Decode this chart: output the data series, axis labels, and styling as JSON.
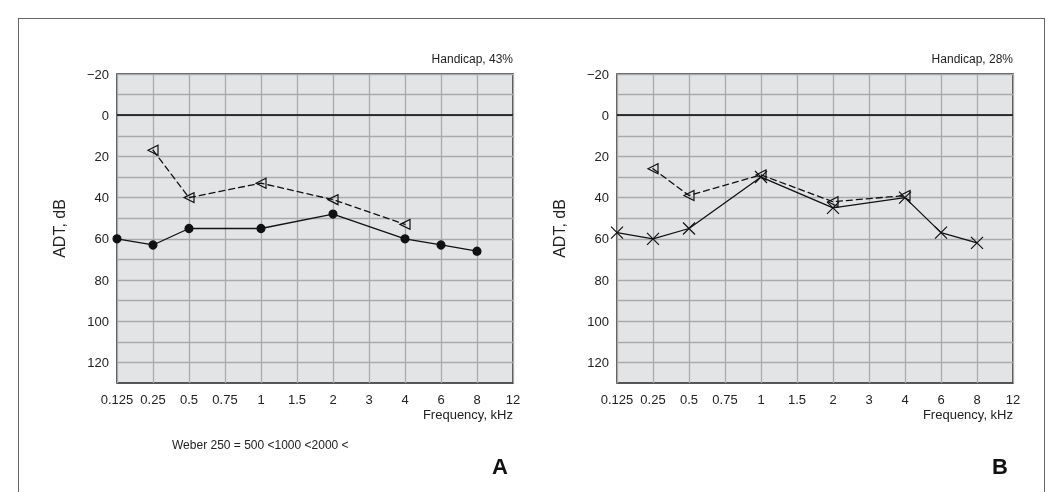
{
  "chart_data": [
    {
      "type": "line",
      "title": "A",
      "xlabel": "Frequency, kHz",
      "ylabel": "ADT, dB",
      "categories": [
        "0.125",
        "0.25",
        "0.5",
        "0.75",
        "1",
        "1.5",
        "2",
        "3",
        "4",
        "6",
        "8",
        "12"
      ],
      "series": [
        {
          "color": "#111111",
          "marker": "circle",
          "line_style": "solid",
          "values": [
            60,
            63,
            55,
            null,
            55,
            null,
            48,
            null,
            60,
            63,
            66,
            null
          ]
        },
        {
          "color": "#111111",
          "marker": "triangle",
          "line_style": "dashed",
          "values": [
            null,
            17,
            40,
            null,
            33,
            null,
            41,
            null,
            53,
            null,
            null,
            null
          ]
        }
      ],
      "ylim": [
        130,
        -20
      ],
      "yticks": [
        -20,
        {
          "value": -10,
          "label": null
        },
        0,
        {
          "value": 10,
          "label": null
        },
        20,
        {
          "value": 30,
          "label": null
        },
        40,
        {
          "value": 50,
          "label": null
        },
        60,
        {
          "value": 70,
          "label": null
        },
        80,
        {
          "value": 90,
          "label": null
        },
        100,
        {
          "value": 110,
          "label": null
        },
        120
      ],
      "grid": true,
      "ref_lines": [
        {
          "axis": "y",
          "value": 0,
          "color": "#000000"
        }
      ],
      "annotations": [
        "Handicap, 43%",
        "Weber 250 = 500 <1000 <2000 <"
      ]
    },
    {
      "type": "line",
      "title": "B",
      "xlabel": "Frequency, kHz",
      "ylabel": "ADT, dB",
      "categories": [
        "0.125",
        "0.25",
        "0.5",
        "0.75",
        "1",
        "1.5",
        "2",
        "3",
        "4",
        "6",
        "8",
        "12"
      ],
      "series": [
        {
          "color": "#111111",
          "marker": "cross",
          "line_style": "solid",
          "values": [
            57,
            60,
            55,
            null,
            30,
            null,
            45,
            null,
            40,
            57,
            62,
            null
          ]
        },
        {
          "color": "#111111",
          "marker": "triangle",
          "line_style": "dashed",
          "values": [
            null,
            26,
            39,
            null,
            29,
            null,
            42,
            null,
            39,
            null,
            null,
            null
          ]
        }
      ],
      "ylim": [
        130,
        -20
      ],
      "yticks": [
        -20,
        {
          "value": -10,
          "label": null
        },
        0,
        {
          "value": 10,
          "label": null
        },
        20,
        {
          "value": 30,
          "label": null
        },
        40,
        {
          "value": 50,
          "label": null
        },
        60,
        {
          "value": 70,
          "label": null
        },
        80,
        {
          "value": 90,
          "label": null
        },
        100,
        {
          "value": 110,
          "label": null
        },
        120
      ],
      "grid": true,
      "ref_lines": [
        {
          "axis": "y",
          "value": 0,
          "color": "#000000"
        }
      ],
      "annotations": [
        "Handicap, 28%"
      ]
    }
  ]
}
